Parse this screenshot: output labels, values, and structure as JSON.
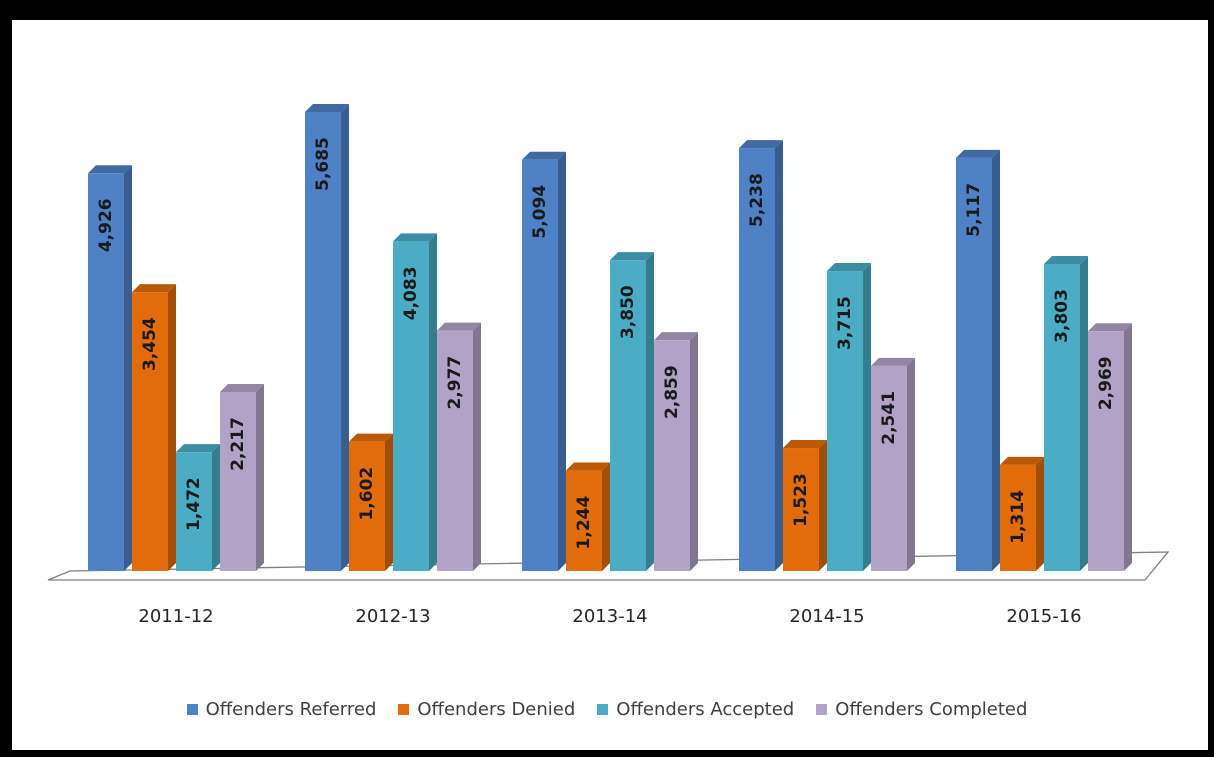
{
  "chart_data": {
    "type": "bar",
    "categories": [
      "2011-12",
      "2012-13",
      "2013-14",
      "2014-15",
      "2015-16"
    ],
    "series": [
      {
        "name": "Offenders Referred",
        "color": "#4F81C7",
        "values": [
          4926,
          5685,
          5094,
          5238,
          5117
        ],
        "labels": [
          "4,926",
          "5,685",
          "5,094",
          "5,238",
          "5,117"
        ]
      },
      {
        "name": "Offenders Denied",
        "color": "#E36C0A",
        "values": [
          3454,
          1602,
          1244,
          1523,
          1314
        ],
        "labels": [
          "3,454",
          "1,602",
          "1,244",
          "1,523",
          "1,314"
        ]
      },
      {
        "name": "Offenders Accepted",
        "color": "#4BACC6",
        "values": [
          1472,
          4083,
          3850,
          3715,
          3803
        ],
        "labels": [
          "1,472",
          "4,083",
          "3,850",
          "3,715",
          "3,803"
        ]
      },
      {
        "name": "Offenders Completed",
        "color": "#B3A2C7",
        "values": [
          2217,
          2977,
          2859,
          2541,
          2969
        ],
        "labels": [
          "2,217",
          "2,977",
          "2,859",
          "2,541",
          "2,969"
        ]
      }
    ],
    "ylim": [
      0,
      5685
    ],
    "grid": false,
    "legend_position": "bottom",
    "style": "3d-clustered-column"
  }
}
